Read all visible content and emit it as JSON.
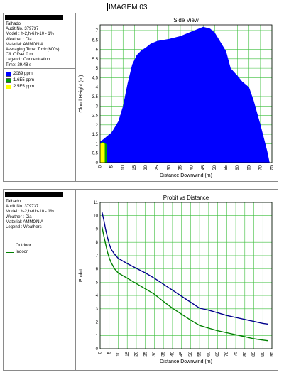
{
  "page_title": "IMAGEM 03",
  "side_view": {
    "info_lines": [
      "Talhado",
      "Audit No. 379737",
      "Model : h-2,h-6,h-10 - 1%",
      "Weather : Dia",
      "Material: AMMONIA",
      "Averaging Time: Toxic(600s)",
      "C/L Offset 0 m",
      "Legend : Concentration",
      "Time: 29.48 s"
    ],
    "legend": [
      {
        "label": "2089 ppm",
        "color": "#0000ff"
      },
      {
        "label": "1.6E5 ppm",
        "color": "#00a000"
      },
      {
        "label": "2.5E5 ppm",
        "color": "#ffff00"
      }
    ]
  },
  "probit": {
    "info_lines": [
      "Talhado",
      "Audit No. 379737",
      "Model : h-2,h-6,h-10 - 1%",
      "Weather : Dia",
      "Material: AMMONIA",
      "Legend : Weathers"
    ],
    "legend": [
      {
        "label": "Outdoor",
        "color": "#00008b"
      },
      {
        "label": "Indoor",
        "color": "#008000"
      }
    ]
  },
  "chart_data": [
    {
      "type": "area",
      "title": "Side View",
      "xlabel": "Distance Downwind (m)",
      "ylabel": "Cloud Height (m)",
      "xlim": [
        0,
        75
      ],
      "ylim": [
        0,
        7.3
      ],
      "xticks": [
        0,
        5,
        10,
        15,
        20,
        25,
        30,
        35,
        40,
        45,
        50,
        55,
        60,
        65,
        70,
        75
      ],
      "yticks": [
        0,
        0.5,
        1,
        1.5,
        2,
        2.5,
        3,
        3.5,
        4,
        4.5,
        5,
        5.5,
        6,
        6.5,
        7
      ],
      "grid": true,
      "series": [
        {
          "color": "#0000ff",
          "x": [
            0,
            1,
            2,
            3,
            4,
            5,
            6,
            8,
            10,
            12,
            14,
            16,
            18,
            20,
            22,
            25,
            30,
            35,
            40,
            45,
            48,
            50,
            52,
            55,
            57,
            60,
            62,
            65,
            67,
            70,
            73,
            74
          ],
          "y": [
            1.1,
            1.2,
            1.3,
            1.4,
            1.5,
            1.6,
            1.8,
            2.2,
            3.0,
            4.2,
            5.2,
            5.7,
            5.95,
            6.1,
            6.3,
            6.45,
            6.55,
            6.7,
            6.95,
            7.2,
            7.1,
            6.9,
            6.5,
            5.9,
            5.0,
            4.6,
            4.3,
            4.0,
            3.3,
            2.0,
            0.6,
            0
          ]
        },
        {
          "color": "#00a000",
          "x": [
            0,
            1,
            2,
            3
          ],
          "y": [
            1.02,
            1.1,
            1.05,
            0.95
          ]
        },
        {
          "color": "#ffff00",
          "x": [
            0,
            1,
            2
          ],
          "y": [
            1.0,
            1.03,
            1.0
          ]
        }
      ]
    },
    {
      "type": "line",
      "title": "Probit vs Distance",
      "xlabel": "Distance Downwind (m)",
      "ylabel": "Probit",
      "xlim": [
        0,
        95
      ],
      "ylim": [
        0,
        11
      ],
      "xticks": [
        0,
        5,
        10,
        15,
        20,
        25,
        30,
        35,
        40,
        45,
        50,
        55,
        60,
        65,
        70,
        75,
        80,
        85,
        90,
        95
      ],
      "yticks": [
        0,
        1,
        2,
        3,
        4,
        5,
        6,
        7,
        8,
        9,
        10,
        11
      ],
      "grid": true,
      "series": [
        {
          "name": "Outdoor",
          "color": "#00008b",
          "x": [
            1,
            2,
            3,
            4,
            5,
            6,
            8,
            10,
            15,
            20,
            25,
            30,
            35,
            40,
            45,
            50,
            55,
            60,
            65,
            70,
            75,
            80,
            85,
            90,
            93
          ],
          "y": [
            10.3,
            9.7,
            9.0,
            8.4,
            7.9,
            7.5,
            7.1,
            6.8,
            6.4,
            6.05,
            5.7,
            5.3,
            4.85,
            4.4,
            3.95,
            3.5,
            3.05,
            2.9,
            2.7,
            2.5,
            2.35,
            2.2,
            2.05,
            1.9,
            1.85
          ]
        },
        {
          "name": "Indoor",
          "color": "#008000",
          "x": [
            1,
            2,
            3,
            4,
            5,
            6,
            8,
            10,
            15,
            20,
            25,
            30,
            35,
            40,
            45,
            50,
            55,
            60,
            65,
            70,
            75,
            80,
            85,
            90,
            93
          ],
          "y": [
            9.2,
            8.5,
            7.9,
            7.3,
            6.85,
            6.5,
            6.0,
            5.7,
            5.3,
            4.9,
            4.5,
            4.1,
            3.55,
            3.05,
            2.6,
            2.15,
            1.75,
            1.55,
            1.35,
            1.2,
            1.05,
            0.9,
            0.75,
            0.65,
            0.6
          ]
        }
      ]
    }
  ]
}
